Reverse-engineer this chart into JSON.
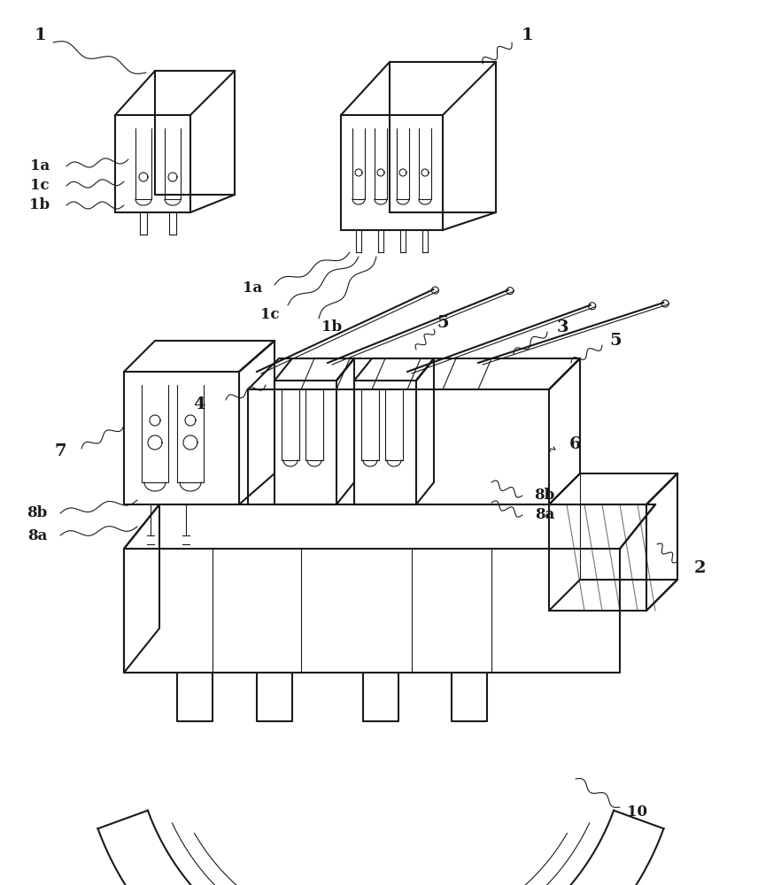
{
  "bg_color": "#ffffff",
  "line_color": "#1a1a1a",
  "lw": 1.5,
  "lw_thin": 0.8,
  "title": "",
  "labels": {
    "1_top_left": [
      0.04,
      0.96,
      "1"
    ],
    "1_top_right": [
      0.56,
      0.96,
      "1"
    ],
    "1a_left": [
      0.04,
      0.72,
      "1a"
    ],
    "1c_left": [
      0.04,
      0.68,
      "1c"
    ],
    "1b_left": [
      0.04,
      0.64,
      "1b"
    ],
    "1a_mid": [
      0.27,
      0.61,
      "1a"
    ],
    "1c_mid": [
      0.29,
      0.57,
      "1c"
    ],
    "1b_mid": [
      0.33,
      0.57,
      "1b"
    ],
    "4": [
      0.25,
      0.54,
      "4"
    ],
    "5_top": [
      0.54,
      0.56,
      "5"
    ],
    "3": [
      0.63,
      0.56,
      "3"
    ],
    "5_right": [
      0.76,
      0.54,
      "5"
    ],
    "7": [
      0.1,
      0.49,
      "7"
    ],
    "6": [
      0.62,
      0.44,
      "6"
    ],
    "8b_left": [
      0.06,
      0.4,
      "8b"
    ],
    "8a_left": [
      0.06,
      0.36,
      "8a"
    ],
    "8b_right": [
      0.6,
      0.4,
      "8b"
    ],
    "8a_right": [
      0.6,
      0.37,
      "8a"
    ],
    "2": [
      0.8,
      0.31,
      "2"
    ],
    "10": [
      0.76,
      0.07,
      "10"
    ]
  },
  "font_size": 14,
  "font_size_small": 12
}
